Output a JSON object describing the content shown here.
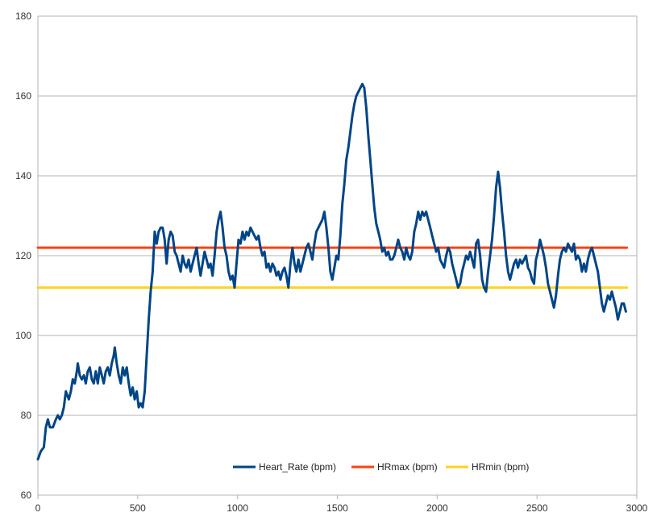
{
  "chart_data": {
    "type": "line",
    "title": "",
    "xlabel": "",
    "ylabel": "",
    "xlim": [
      0,
      3000
    ],
    "ylim": [
      60,
      180
    ],
    "xticks": [
      0,
      500,
      1000,
      1500,
      2000,
      2500,
      3000
    ],
    "yticks": [
      60,
      80,
      100,
      120,
      140,
      160,
      180
    ],
    "grid": "horizontal",
    "legend_position": "bottom-inside",
    "series": [
      {
        "name": "Heart_Rate (bpm)",
        "color": "#004586",
        "points": [
          [
            0,
            69
          ],
          [
            15,
            71
          ],
          [
            30,
            72
          ],
          [
            40,
            77
          ],
          [
            50,
            79
          ],
          [
            60,
            77
          ],
          [
            75,
            77
          ],
          [
            90,
            79
          ],
          [
            100,
            80
          ],
          [
            110,
            79
          ],
          [
            120,
            80
          ],
          [
            130,
            82
          ],
          [
            140,
            86
          ],
          [
            155,
            84
          ],
          [
            165,
            86
          ],
          [
            175,
            89
          ],
          [
            185,
            88
          ],
          [
            195,
            91
          ],
          [
            200,
            93
          ],
          [
            210,
            90
          ],
          [
            220,
            89
          ],
          [
            230,
            90
          ],
          [
            240,
            88
          ],
          [
            250,
            91
          ],
          [
            260,
            92
          ],
          [
            270,
            89
          ],
          [
            280,
            88
          ],
          [
            290,
            91
          ],
          [
            300,
            88
          ],
          [
            310,
            92
          ],
          [
            320,
            90
          ],
          [
            330,
            88
          ],
          [
            340,
            91
          ],
          [
            350,
            92
          ],
          [
            360,
            90
          ],
          [
            370,
            93
          ],
          [
            380,
            95
          ],
          [
            385,
            97
          ],
          [
            395,
            93
          ],
          [
            405,
            90
          ],
          [
            415,
            88
          ],
          [
            425,
            92
          ],
          [
            435,
            90
          ],
          [
            445,
            92
          ],
          [
            455,
            88
          ],
          [
            465,
            85
          ],
          [
            475,
            87
          ],
          [
            485,
            84
          ],
          [
            495,
            86
          ],
          [
            505,
            82
          ],
          [
            515,
            83
          ],
          [
            525,
            82
          ],
          [
            535,
            86
          ],
          [
            545,
            95
          ],
          [
            555,
            104
          ],
          [
            565,
            111
          ],
          [
            575,
            116
          ],
          [
            585,
            126
          ],
          [
            595,
            123
          ],
          [
            605,
            126
          ],
          [
            615,
            127
          ],
          [
            625,
            127
          ],
          [
            635,
            124
          ],
          [
            645,
            118
          ],
          [
            655,
            124
          ],
          [
            665,
            126
          ],
          [
            675,
            125
          ],
          [
            685,
            121
          ],
          [
            695,
            120
          ],
          [
            705,
            118
          ],
          [
            715,
            116
          ],
          [
            725,
            120
          ],
          [
            735,
            118
          ],
          [
            745,
            117
          ],
          [
            755,
            119
          ],
          [
            765,
            116
          ],
          [
            775,
            118
          ],
          [
            785,
            120
          ],
          [
            795,
            122
          ],
          [
            805,
            118
          ],
          [
            815,
            115
          ],
          [
            825,
            118
          ],
          [
            835,
            121
          ],
          [
            845,
            119
          ],
          [
            855,
            117
          ],
          [
            865,
            118
          ],
          [
            875,
            115
          ],
          [
            885,
            120
          ],
          [
            895,
            126
          ],
          [
            905,
            129
          ],
          [
            915,
            131
          ],
          [
            925,
            127
          ],
          [
            935,
            122
          ],
          [
            945,
            120
          ],
          [
            955,
            116
          ],
          [
            965,
            114
          ],
          [
            975,
            115
          ],
          [
            985,
            112
          ],
          [
            995,
            118
          ],
          [
            1005,
            124
          ],
          [
            1015,
            123
          ],
          [
            1025,
            126
          ],
          [
            1035,
            124
          ],
          [
            1045,
            126
          ],
          [
            1055,
            125
          ],
          [
            1065,
            127
          ],
          [
            1075,
            126
          ],
          [
            1085,
            125
          ],
          [
            1095,
            124
          ],
          [
            1105,
            125
          ],
          [
            1115,
            122
          ],
          [
            1125,
            120
          ],
          [
            1135,
            121
          ],
          [
            1145,
            117
          ],
          [
            1155,
            118
          ],
          [
            1165,
            116
          ],
          [
            1175,
            118
          ],
          [
            1185,
            117
          ],
          [
            1195,
            115
          ],
          [
            1205,
            116
          ],
          [
            1215,
            114
          ],
          [
            1225,
            116
          ],
          [
            1235,
            117
          ],
          [
            1245,
            115
          ],
          [
            1255,
            112
          ],
          [
            1265,
            118
          ],
          [
            1275,
            122
          ],
          [
            1285,
            118
          ],
          [
            1295,
            116
          ],
          [
            1305,
            119
          ],
          [
            1315,
            116
          ],
          [
            1325,
            118
          ],
          [
            1335,
            120
          ],
          [
            1345,
            122
          ],
          [
            1355,
            123
          ],
          [
            1365,
            121
          ],
          [
            1375,
            119
          ],
          [
            1385,
            123
          ],
          [
            1395,
            126
          ],
          [
            1405,
            127
          ],
          [
            1415,
            128
          ],
          [
            1425,
            129
          ],
          [
            1435,
            131
          ],
          [
            1445,
            127
          ],
          [
            1455,
            122
          ],
          [
            1465,
            116
          ],
          [
            1475,
            114
          ],
          [
            1485,
            117
          ],
          [
            1495,
            120
          ],
          [
            1505,
            119
          ],
          [
            1515,
            125
          ],
          [
            1525,
            133
          ],
          [
            1535,
            138
          ],
          [
            1545,
            144
          ],
          [
            1555,
            147
          ],
          [
            1565,
            151
          ],
          [
            1575,
            155
          ],
          [
            1585,
            158
          ],
          [
            1595,
            160
          ],
          [
            1605,
            161
          ],
          [
            1615,
            162
          ],
          [
            1625,
            163
          ],
          [
            1635,
            162
          ],
          [
            1645,
            157
          ],
          [
            1655,
            150
          ],
          [
            1665,
            144
          ],
          [
            1675,
            138
          ],
          [
            1685,
            132
          ],
          [
            1695,
            128
          ],
          [
            1705,
            126
          ],
          [
            1715,
            124
          ],
          [
            1725,
            121
          ],
          [
            1735,
            122
          ],
          [
            1745,
            120
          ],
          [
            1755,
            121
          ],
          [
            1765,
            119
          ],
          [
            1775,
            119
          ],
          [
            1785,
            120
          ],
          [
            1795,
            122
          ],
          [
            1805,
            124
          ],
          [
            1815,
            122
          ],
          [
            1825,
            121
          ],
          [
            1835,
            119
          ],
          [
            1845,
            122
          ],
          [
            1855,
            120
          ],
          [
            1865,
            119
          ],
          [
            1875,
            121
          ],
          [
            1885,
            126
          ],
          [
            1895,
            128
          ],
          [
            1905,
            131
          ],
          [
            1915,
            129
          ],
          [
            1925,
            131
          ],
          [
            1935,
            130
          ],
          [
            1945,
            131
          ],
          [
            1955,
            129
          ],
          [
            1965,
            127
          ],
          [
            1975,
            125
          ],
          [
            1985,
            123
          ],
          [
            1995,
            121
          ],
          [
            2005,
            122
          ],
          [
            2015,
            119
          ],
          [
            2025,
            118
          ],
          [
            2035,
            117
          ],
          [
            2045,
            120
          ],
          [
            2055,
            122
          ],
          [
            2065,
            121
          ],
          [
            2075,
            118
          ],
          [
            2085,
            116
          ],
          [
            2095,
            114
          ],
          [
            2105,
            112
          ],
          [
            2115,
            113
          ],
          [
            2125,
            116
          ],
          [
            2135,
            118
          ],
          [
            2145,
            120
          ],
          [
            2155,
            119
          ],
          [
            2165,
            121
          ],
          [
            2175,
            119
          ],
          [
            2185,
            117
          ],
          [
            2195,
            123
          ],
          [
            2205,
            124
          ],
          [
            2215,
            120
          ],
          [
            2225,
            114
          ],
          [
            2235,
            112
          ],
          [
            2245,
            111
          ],
          [
            2255,
            116
          ],
          [
            2265,
            120
          ],
          [
            2275,
            124
          ],
          [
            2285,
            130
          ],
          [
            2295,
            137
          ],
          [
            2305,
            141
          ],
          [
            2315,
            137
          ],
          [
            2325,
            131
          ],
          [
            2335,
            126
          ],
          [
            2345,
            120
          ],
          [
            2355,
            116
          ],
          [
            2365,
            114
          ],
          [
            2375,
            116
          ],
          [
            2385,
            118
          ],
          [
            2395,
            119
          ],
          [
            2405,
            117
          ],
          [
            2415,
            119
          ],
          [
            2425,
            118
          ],
          [
            2435,
            119
          ],
          [
            2445,
            120
          ],
          [
            2455,
            117
          ],
          [
            2465,
            116
          ],
          [
            2475,
            114
          ],
          [
            2485,
            113
          ],
          [
            2495,
            119
          ],
          [
            2505,
            121
          ],
          [
            2515,
            124
          ],
          [
            2525,
            122
          ],
          [
            2535,
            120
          ],
          [
            2545,
            117
          ],
          [
            2555,
            113
          ],
          [
            2565,
            111
          ],
          [
            2575,
            109
          ],
          [
            2585,
            107
          ],
          [
            2595,
            110
          ],
          [
            2605,
            115
          ],
          [
            2615,
            119
          ],
          [
            2625,
            121
          ],
          [
            2635,
            122
          ],
          [
            2645,
            121
          ],
          [
            2655,
            123
          ],
          [
            2665,
            122
          ],
          [
            2675,
            121
          ],
          [
            2685,
            123
          ],
          [
            2695,
            119
          ],
          [
            2705,
            120
          ],
          [
            2715,
            119
          ],
          [
            2725,
            116
          ],
          [
            2735,
            118
          ],
          [
            2745,
            116
          ],
          [
            2755,
            119
          ],
          [
            2765,
            121
          ],
          [
            2775,
            122
          ],
          [
            2785,
            120
          ],
          [
            2795,
            118
          ],
          [
            2805,
            116
          ],
          [
            2815,
            112
          ],
          [
            2825,
            108
          ],
          [
            2835,
            106
          ],
          [
            2845,
            108
          ],
          [
            2855,
            110
          ],
          [
            2865,
            109
          ],
          [
            2875,
            111
          ],
          [
            2885,
            109
          ],
          [
            2895,
            107
          ],
          [
            2905,
            104
          ],
          [
            2915,
            106
          ],
          [
            2925,
            108
          ],
          [
            2935,
            108
          ],
          [
            2945,
            106
          ]
        ]
      },
      {
        "name": "HRmax (bpm)",
        "color": "#ff420e",
        "points": [
          [
            0,
            122
          ],
          [
            2950,
            122
          ]
        ]
      },
      {
        "name": "HRmin (bpm)",
        "color": "#ffd320",
        "points": [
          [
            0,
            112
          ],
          [
            2950,
            112
          ]
        ]
      }
    ]
  }
}
